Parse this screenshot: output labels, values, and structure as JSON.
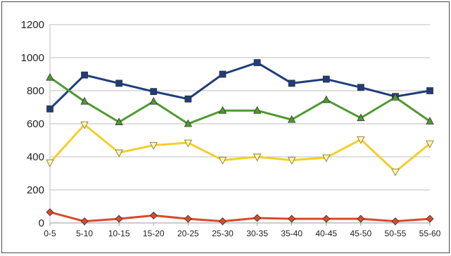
{
  "chart_data": {
    "type": "line",
    "categories": [
      "0-5",
      "5-10",
      "10-15",
      "15-20",
      "20-25",
      "25-30",
      "30-35",
      "35-40",
      "40-45",
      "45-50",
      "50-55",
      "55-60"
    ],
    "ylim": [
      0,
      1200
    ],
    "yticks": [
      0,
      200,
      400,
      600,
      800,
      1000,
      1200
    ],
    "grid": "horizontal",
    "title": "",
    "xlabel": "",
    "ylabel": "",
    "series": [
      {
        "color": "#1f3d7a",
        "marker": "square",
        "values": [
          690,
          895,
          845,
          795,
          750,
          900,
          970,
          845,
          870,
          820,
          765,
          800
        ]
      },
      {
        "color": "#4e9a2f",
        "marker": "triangle-up",
        "values": [
          880,
          735,
          610,
          735,
          600,
          680,
          680,
          625,
          745,
          635,
          760,
          615
        ]
      },
      {
        "color": "#f2cf2a",
        "marker": "triangle-down",
        "values": [
          365,
          595,
          425,
          470,
          485,
          380,
          400,
          380,
          395,
          505,
          310,
          480
        ]
      },
      {
        "color": "#d84a2b",
        "marker": "diamond",
        "values": [
          65,
          10,
          25,
          45,
          25,
          10,
          30,
          25,
          25,
          25,
          10,
          25
        ]
      }
    ]
  }
}
